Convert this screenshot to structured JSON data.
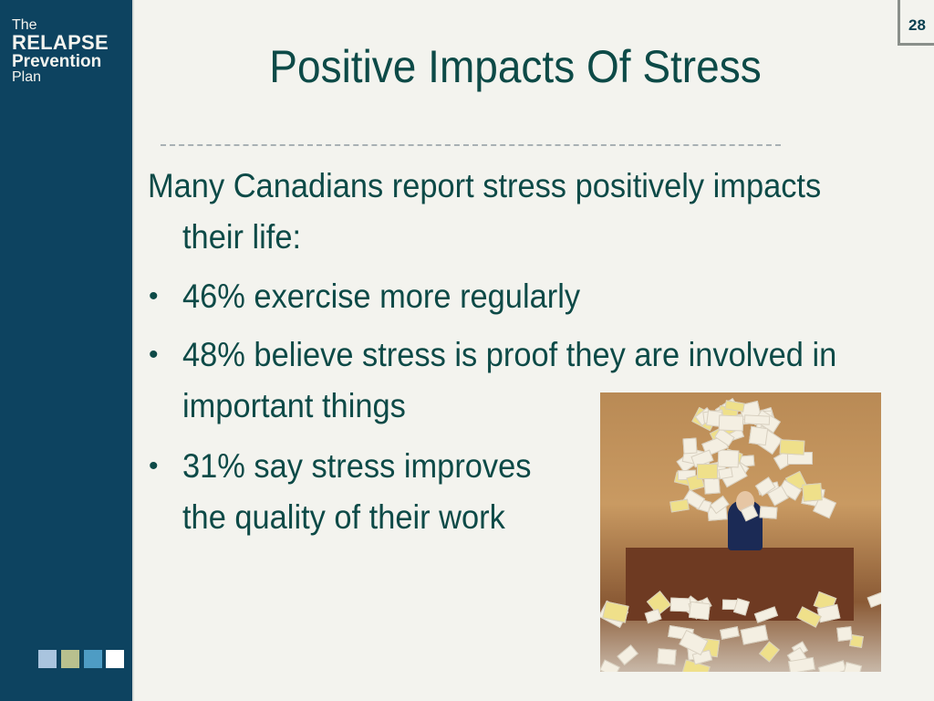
{
  "sidebar": {
    "logo": {
      "line1": "The",
      "line2": "RELAPSE",
      "line3": "Prevention",
      "line4": "Plan"
    },
    "squares": [
      "#a9c4de",
      "#b8c08e",
      "#4e9cc4",
      "#ffffff"
    ],
    "background": "#0d4360"
  },
  "slide": {
    "page_number": "28",
    "title": "Positive Impacts Of Stress",
    "intro_line1": "Many Canadians report stress positively impacts",
    "intro_line2": "their life:",
    "bullets": [
      {
        "line1": "46% exercise more regularly"
      },
      {
        "line1": "48% believe stress is proof they are involved in",
        "line2": "important things"
      },
      {
        "line1": "31% say stress improves",
        "line2": "the quality of their work"
      }
    ],
    "text_color": "#0d4a47"
  }
}
